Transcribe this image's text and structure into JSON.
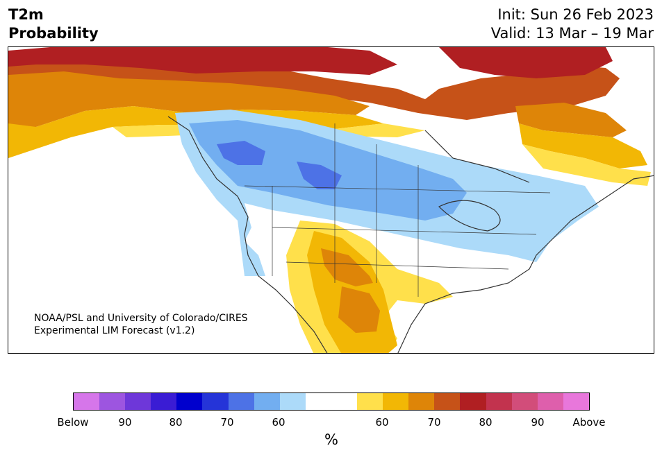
{
  "title": {
    "line1": "T2m",
    "line2": "Probability"
  },
  "header": {
    "init": "Init: Sun 26 Feb 2023",
    "valid": "Valid: 13 Mar – 19 Mar"
  },
  "credit": {
    "line1": "NOAA/PSL and University of Colorado/CIRES",
    "line2": "Experimental LIM Forecast (v1.2)"
  },
  "colorbar": {
    "unit": "%",
    "colors": [
      "#d676ea",
      "#9d55e0",
      "#6e37d9",
      "#3a1cd4",
      "#0000cd",
      "#2534d8",
      "#4d72e6",
      "#72aef0",
      "#acdaf9",
      "#ffffff",
      "#ffffff",
      "#ffe04b",
      "#f2b705",
      "#de8508",
      "#c65218",
      "#b01f22",
      "#c2334e",
      "#d24d7a",
      "#de5fac",
      "#e877db"
    ],
    "ticks": [
      {
        "label": "Below"
      },
      {
        "label": "90"
      },
      {
        "label": "80"
      },
      {
        "label": "70"
      },
      {
        "label": "60"
      },
      {
        "label": "60"
      },
      {
        "label": "70"
      },
      {
        "label": "80"
      },
      {
        "label": "90"
      },
      {
        "label": "Above"
      }
    ]
  },
  "map": {
    "region": "North America",
    "legend_colors": {
      "blue_60": "#acdaf9",
      "blue_70": "#72aef0",
      "blue_80": "#4d72e6",
      "yellow_60": "#ffe04b",
      "yellow_70": "#f2b705",
      "orange_80": "#de8508",
      "rust": "#c65218",
      "red_90": "#b01f22",
      "water": "#ffffff"
    }
  }
}
